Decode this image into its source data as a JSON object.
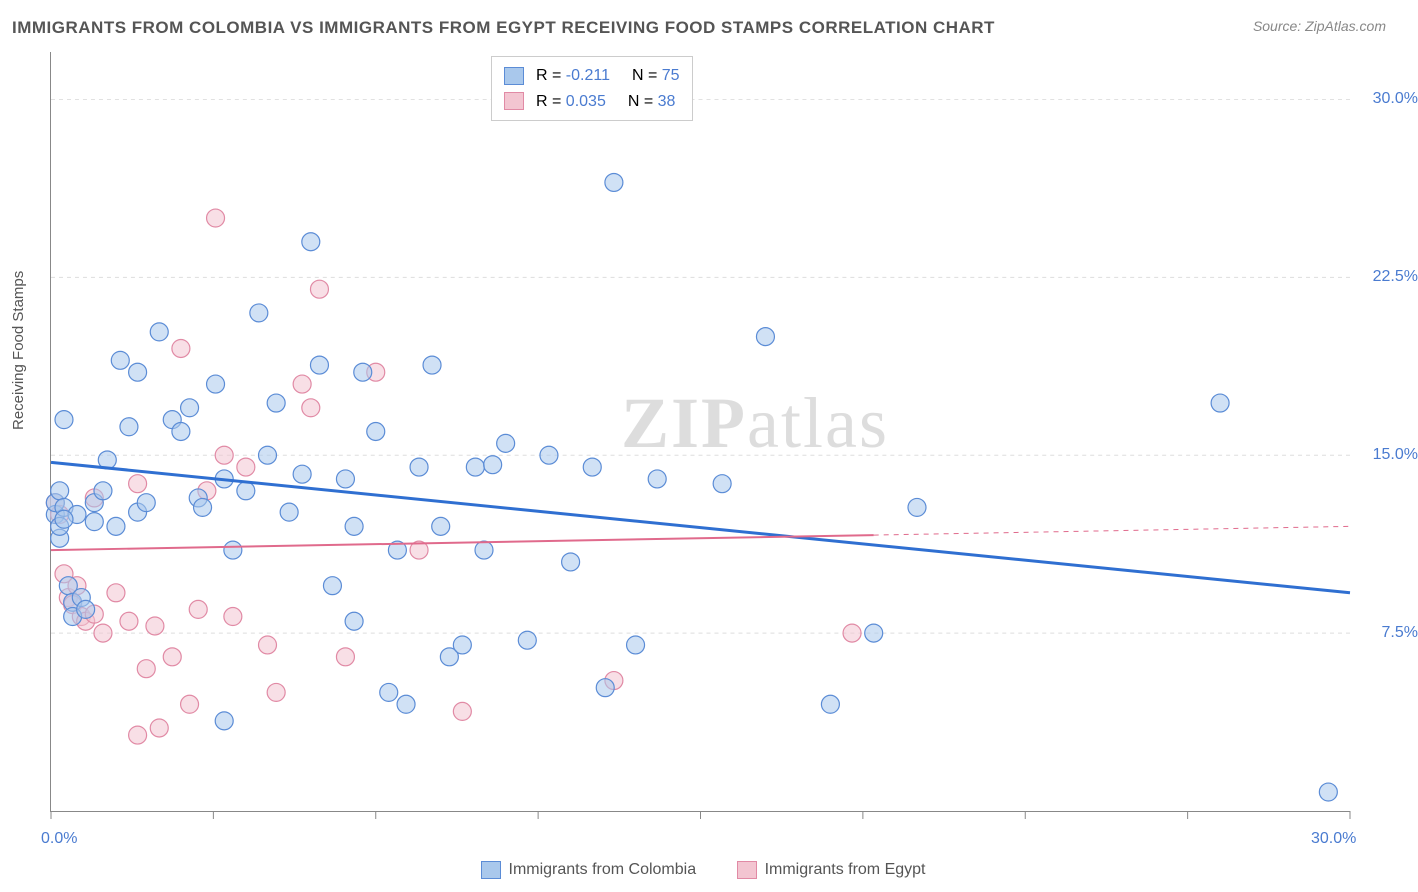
{
  "title": "IMMIGRANTS FROM COLOMBIA VS IMMIGRANTS FROM EGYPT RECEIVING FOOD STAMPS CORRELATION CHART",
  "source": "Source: ZipAtlas.com",
  "ylabel": "Receiving Food Stamps",
  "watermark_bold": "ZIP",
  "watermark_light": "atlas",
  "chart": {
    "type": "scatter",
    "xlim": [
      0,
      30
    ],
    "ylim": [
      0,
      32
    ],
    "xtick_labels": {
      "0": "0.0%",
      "30": "30.0%"
    },
    "xtick_positions": [
      0,
      3.75,
      7.5,
      11.25,
      15,
      18.75,
      22.5,
      26.25,
      30
    ],
    "ytick_labels": {
      "7.5": "7.5%",
      "15": "15.0%",
      "22.5": "22.5%",
      "30": "30.0%"
    },
    "ytick_positions": [
      7.5,
      15,
      22.5,
      30
    ],
    "grid_color": "#dddddd",
    "axis_color": "#888888",
    "background_color": "#ffffff",
    "marker_radius": 9,
    "marker_opacity": 0.55,
    "series": [
      {
        "name": "Immigrants from Colombia",
        "color_fill": "#a9c8ec",
        "color_stroke": "#5b8cd6",
        "trend_color": "#2f6fd1",
        "trend_width": 3,
        "trend_dash_after_x": null,
        "R": "-0.211",
        "N": "75",
        "trend_y_at_x0": 14.7,
        "trend_y_at_x30": 9.2,
        "points": [
          [
            0.1,
            12.5
          ],
          [
            0.1,
            13.0
          ],
          [
            0.2,
            11.5
          ],
          [
            0.2,
            12.0
          ],
          [
            0.2,
            13.5
          ],
          [
            0.3,
            16.5
          ],
          [
            0.3,
            12.8
          ],
          [
            0.4,
            9.5
          ],
          [
            0.5,
            8.8
          ],
          [
            0.5,
            8.2
          ],
          [
            0.6,
            12.5
          ],
          [
            0.7,
            9.0
          ],
          [
            0.8,
            8.5
          ],
          [
            1.0,
            13.0
          ],
          [
            1.0,
            12.2
          ],
          [
            1.2,
            13.5
          ],
          [
            1.3,
            14.8
          ],
          [
            1.5,
            12.0
          ],
          [
            1.6,
            19.0
          ],
          [
            1.8,
            16.2
          ],
          [
            2.0,
            18.5
          ],
          [
            2.0,
            12.6
          ],
          [
            2.2,
            13.0
          ],
          [
            2.5,
            20.2
          ],
          [
            2.8,
            16.5
          ],
          [
            3.0,
            16.0
          ],
          [
            3.2,
            17.0
          ],
          [
            3.4,
            13.2
          ],
          [
            3.5,
            12.8
          ],
          [
            3.8,
            18.0
          ],
          [
            4.0,
            3.8
          ],
          [
            4.0,
            14.0
          ],
          [
            4.2,
            11.0
          ],
          [
            4.5,
            13.5
          ],
          [
            4.8,
            21.0
          ],
          [
            5.0,
            15.0
          ],
          [
            5.2,
            17.2
          ],
          [
            5.5,
            12.6
          ],
          [
            5.8,
            14.2
          ],
          [
            6.0,
            24.0
          ],
          [
            6.2,
            18.8
          ],
          [
            6.5,
            9.5
          ],
          [
            6.8,
            14.0
          ],
          [
            7.0,
            8.0
          ],
          [
            7.0,
            12.0
          ],
          [
            7.2,
            18.5
          ],
          [
            7.5,
            16.0
          ],
          [
            7.8,
            5.0
          ],
          [
            8.0,
            11.0
          ],
          [
            8.2,
            4.5
          ],
          [
            8.5,
            14.5
          ],
          [
            8.8,
            18.8
          ],
          [
            9.0,
            12.0
          ],
          [
            9.2,
            6.5
          ],
          [
            9.5,
            7.0
          ],
          [
            9.8,
            14.5
          ],
          [
            10.0,
            11.0
          ],
          [
            10.2,
            14.6
          ],
          [
            10.5,
            15.5
          ],
          [
            11.0,
            7.2
          ],
          [
            11.5,
            15.0
          ],
          [
            12.0,
            10.5
          ],
          [
            12.5,
            14.5
          ],
          [
            12.8,
            5.2
          ],
          [
            13.0,
            26.5
          ],
          [
            13.5,
            7.0
          ],
          [
            14.0,
            14.0
          ],
          [
            15.5,
            13.8
          ],
          [
            16.5,
            20.0
          ],
          [
            18.0,
            4.5
          ],
          [
            19.0,
            7.5
          ],
          [
            20.0,
            12.8
          ],
          [
            27.0,
            17.2
          ],
          [
            29.5,
            0.8
          ],
          [
            0.3,
            12.3
          ]
        ]
      },
      {
        "name": "Immigrants from Egypt",
        "color_fill": "#f3c5d1",
        "color_stroke": "#e18aa5",
        "trend_color": "#e06a8c",
        "trend_width": 2,
        "trend_dash_after_x": 19,
        "R": "0.035",
        "N": "38",
        "trend_y_at_x0": 11.0,
        "trend_y_at_x30": 12.0,
        "points": [
          [
            0.1,
            13.0
          ],
          [
            0.2,
            12.5
          ],
          [
            0.3,
            10.0
          ],
          [
            0.4,
            9.0
          ],
          [
            0.5,
            8.7
          ],
          [
            0.6,
            9.5
          ],
          [
            0.7,
            8.2
          ],
          [
            0.8,
            8.0
          ],
          [
            1.0,
            8.3
          ],
          [
            1.0,
            13.2
          ],
          [
            1.2,
            7.5
          ],
          [
            1.5,
            9.2
          ],
          [
            1.8,
            8.0
          ],
          [
            2.0,
            3.2
          ],
          [
            2.0,
            13.8
          ],
          [
            2.2,
            6.0
          ],
          [
            2.4,
            7.8
          ],
          [
            2.5,
            3.5
          ],
          [
            2.8,
            6.5
          ],
          [
            3.0,
            19.5
          ],
          [
            3.2,
            4.5
          ],
          [
            3.4,
            8.5
          ],
          [
            3.6,
            13.5
          ],
          [
            3.8,
            25.0
          ],
          [
            4.0,
            15.0
          ],
          [
            4.2,
            8.2
          ],
          [
            4.5,
            14.5
          ],
          [
            5.0,
            7.0
          ],
          [
            5.2,
            5.0
          ],
          [
            5.8,
            18.0
          ],
          [
            6.0,
            17.0
          ],
          [
            6.2,
            22.0
          ],
          [
            6.8,
            6.5
          ],
          [
            7.5,
            18.5
          ],
          [
            8.5,
            11.0
          ],
          [
            9.5,
            4.2
          ],
          [
            13.0,
            5.5
          ],
          [
            18.5,
            7.5
          ]
        ]
      }
    ]
  },
  "legend_mini": {
    "R_label": "R =",
    "N_label": "N ="
  },
  "legend_bottom": {
    "series1_label": "Immigrants from Colombia",
    "series2_label": "Immigrants from Egypt"
  }
}
